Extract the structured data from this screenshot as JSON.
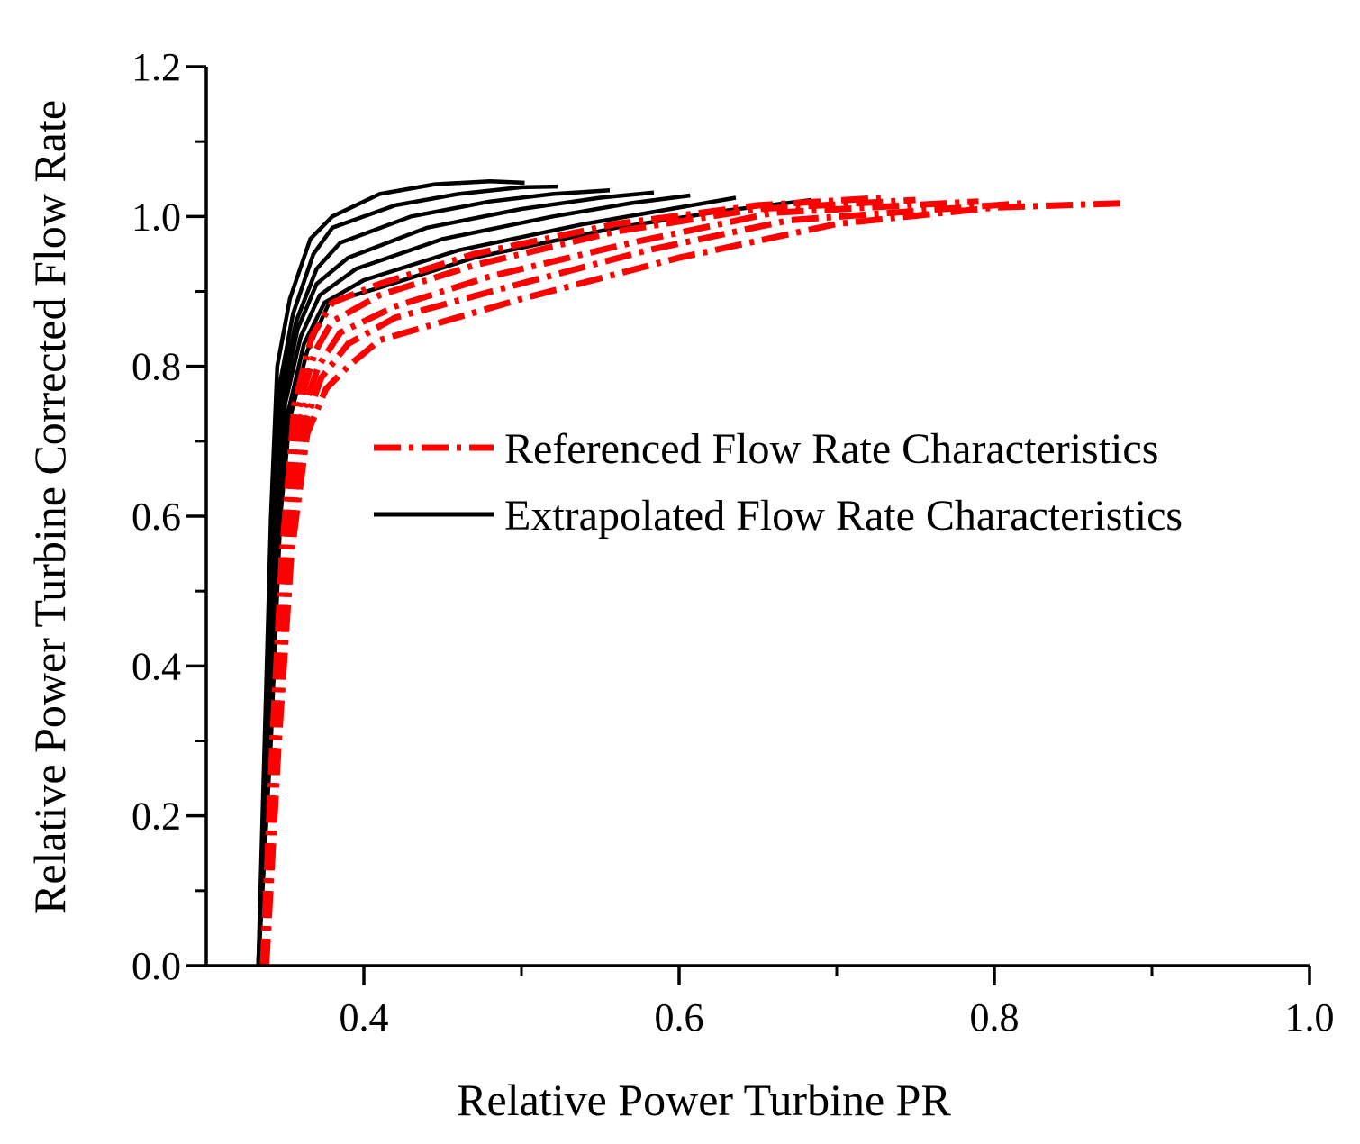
{
  "chart_data": {
    "type": "line",
    "xlabel": "Relative Power Turbine PR",
    "ylabel": "Relative Power Turbine Corrected Flow Rate",
    "xlim": [
      0.3,
      1.0
    ],
    "ylim": [
      0.0,
      1.2
    ],
    "x_ticks": [
      0.4,
      0.6,
      0.8,
      1.0
    ],
    "x_tick_labels": [
      "0.4",
      "0.6",
      "0.8",
      "1.0"
    ],
    "y_ticks": [
      0.0,
      0.2,
      0.4,
      0.6,
      0.8,
      1.0,
      1.2
    ],
    "y_tick_labels": [
      "0.0",
      "0.2",
      "0.4",
      "0.6",
      "0.8",
      "1.0",
      "1.2"
    ],
    "legend": {
      "position": "center-right",
      "entries": [
        {
          "label": "Referenced Flow Rate Characteristics",
          "color": "#ff0000",
          "style": "dash-dot"
        },
        {
          "label": "Extrapolated Flow Rate Characteristics",
          "color": "#000000",
          "style": "solid"
        }
      ]
    },
    "series": [
      {
        "name": "Extrapolated 1",
        "group": "extrapolated",
        "color": "#000000",
        "style": "solid",
        "x": [
          0.333,
          0.337,
          0.341,
          0.345,
          0.353,
          0.366,
          0.38,
          0.41,
          0.445,
          0.48,
          0.502
        ],
        "y": [
          0.0,
          0.3,
          0.6,
          0.8,
          0.89,
          0.97,
          1.0,
          1.03,
          1.043,
          1.047,
          1.045
        ]
      },
      {
        "name": "Extrapolated 2",
        "group": "extrapolated",
        "color": "#000000",
        "style": "solid",
        "x": [
          0.333,
          0.338,
          0.342,
          0.347,
          0.355,
          0.368,
          0.38,
          0.42,
          0.46,
          0.5,
          0.523
        ],
        "y": [
          0.0,
          0.3,
          0.6,
          0.78,
          0.87,
          0.95,
          0.985,
          1.015,
          1.03,
          1.039,
          1.04
        ]
      },
      {
        "name": "Extrapolated 3",
        "group": "extrapolated",
        "color": "#000000",
        "style": "solid",
        "x": [
          0.333,
          0.339,
          0.343,
          0.348,
          0.357,
          0.37,
          0.385,
          0.43,
          0.48,
          0.52,
          0.556
        ],
        "y": [
          0.0,
          0.3,
          0.6,
          0.77,
          0.86,
          0.93,
          0.965,
          1.0,
          1.02,
          1.03,
          1.035
        ]
      },
      {
        "name": "Extrapolated 4",
        "group": "extrapolated",
        "color": "#000000",
        "style": "solid",
        "x": [
          0.333,
          0.339,
          0.344,
          0.349,
          0.358,
          0.37,
          0.39,
          0.44,
          0.5,
          0.55,
          0.584
        ],
        "y": [
          0.0,
          0.3,
          0.6,
          0.76,
          0.85,
          0.91,
          0.945,
          0.985,
          1.01,
          1.025,
          1.032
        ]
      },
      {
        "name": "Extrapolated 5",
        "group": "extrapolated",
        "color": "#000000",
        "style": "solid",
        "x": [
          0.333,
          0.34,
          0.345,
          0.35,
          0.36,
          0.372,
          0.395,
          0.45,
          0.52,
          0.57,
          0.607
        ],
        "y": [
          0.0,
          0.3,
          0.6,
          0.75,
          0.84,
          0.895,
          0.93,
          0.97,
          1.0,
          1.018,
          1.028
        ]
      },
      {
        "name": "Extrapolated 6",
        "group": "extrapolated",
        "color": "#000000",
        "style": "solid",
        "x": [
          0.333,
          0.34,
          0.346,
          0.352,
          0.362,
          0.375,
          0.4,
          0.46,
          0.54,
          0.6,
          0.636
        ],
        "y": [
          0.0,
          0.3,
          0.6,
          0.74,
          0.83,
          0.885,
          0.915,
          0.955,
          0.99,
          1.012,
          1.025
        ]
      },
      {
        "name": "Extrapolated 7",
        "group": "extrapolated",
        "color": "#000000",
        "style": "solid",
        "x": [
          0.333,
          0.341,
          0.347,
          0.353,
          0.364,
          0.378,
          0.41,
          0.47,
          0.56,
          0.63,
          0.684
        ],
        "y": [
          0.0,
          0.3,
          0.6,
          0.73,
          0.82,
          0.885,
          0.905,
          0.945,
          0.985,
          1.008,
          1.022
        ]
      },
      {
        "name": "Referenced 1",
        "group": "referenced",
        "color": "#ff0000",
        "style": "dash-dot",
        "x": [
          0.336,
          0.342,
          0.348,
          0.356,
          0.367,
          0.38,
          0.41,
          0.47,
          0.56,
          0.65,
          0.73
        ],
        "y": [
          0.0,
          0.3,
          0.55,
          0.75,
          0.84,
          0.885,
          0.91,
          0.95,
          0.99,
          1.015,
          1.025
        ]
      },
      {
        "name": "Referenced 2",
        "group": "referenced",
        "color": "#ff0000",
        "style": "dash-dot",
        "x": [
          0.336,
          0.343,
          0.35,
          0.358,
          0.369,
          0.38,
          0.41,
          0.47,
          0.56,
          0.65,
          0.75
        ],
        "y": [
          0.0,
          0.3,
          0.55,
          0.74,
          0.82,
          0.86,
          0.895,
          0.935,
          0.98,
          1.01,
          1.022
        ]
      },
      {
        "name": "Referenced 3",
        "group": "referenced",
        "color": "#ff0000",
        "style": "dash-dot",
        "x": [
          0.337,
          0.344,
          0.351,
          0.36,
          0.371,
          0.385,
          0.42,
          0.48,
          0.57,
          0.66,
          0.79
        ],
        "y": [
          0.0,
          0.3,
          0.55,
          0.73,
          0.8,
          0.845,
          0.88,
          0.92,
          0.965,
          1.005,
          1.02
        ]
      },
      {
        "name": "Referenced 4",
        "group": "referenced",
        "color": "#ff0000",
        "style": "dash-dot",
        "x": [
          0.337,
          0.345,
          0.352,
          0.362,
          0.373,
          0.39,
          0.42,
          0.49,
          0.58,
          0.67,
          0.82
        ],
        "y": [
          0.0,
          0.3,
          0.55,
          0.72,
          0.785,
          0.83,
          0.865,
          0.905,
          0.955,
          0.995,
          1.018
        ]
      },
      {
        "name": "Referenced 5",
        "group": "referenced",
        "color": "#ff0000",
        "style": "dash-dot",
        "x": [
          0.338,
          0.346,
          0.354,
          0.364,
          0.376,
          0.39,
          0.41,
          0.5,
          0.6,
          0.7,
          0.8,
          0.885
        ],
        "y": [
          0.0,
          0.3,
          0.55,
          0.71,
          0.77,
          0.8,
          0.835,
          0.89,
          0.945,
          0.99,
          1.012,
          1.018
        ]
      }
    ]
  }
}
